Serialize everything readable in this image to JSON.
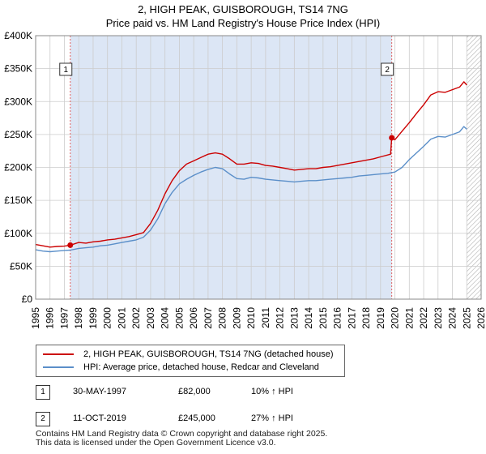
{
  "title_line1": "2, HIGH PEAK, GUISBOROUGH, TS14 7NG",
  "title_line2": "Price paid vs. HM Land Registry's House Price Index (HPI)",
  "colors": {
    "property": "#cc0000",
    "hpi": "#5b8fc9",
    "plot_bg": "#dce6f5",
    "future_hatch": "#b0b0b0"
  },
  "legend": {
    "property_label": "2, HIGH PEAK, GUISBOROUGH, TS14 7NG (detached house)",
    "hpi_label": "HPI: Average price, detached house, Redcar and Cleveland"
  },
  "transactions": [
    {
      "num": "1",
      "date": "30-MAY-1997",
      "price": "£82,000",
      "hpi_change": "10% ↑ HPI"
    },
    {
      "num": "2",
      "date": "11-OCT-2019",
      "price": "£245,000",
      "hpi_change": "27% ↑ HPI"
    }
  ],
  "footer_line1": "Contains HM Land Registry data © Crown copyright and database right 2025.",
  "footer_line2": "This data is licensed under the Open Government Licence v3.0.",
  "chart_data": {
    "type": "line",
    "title": "2, HIGH PEAK, GUISBOROUGH, TS14 7NG",
    "subtitle": "Price paid vs. HM Land Registry's House Price Index (HPI)",
    "xlim": [
      1995,
      2026
    ],
    "ylim": [
      0,
      400000
    ],
    "x_ticks": [
      1995,
      1996,
      1997,
      1998,
      1999,
      2000,
      2001,
      2002,
      2003,
      2004,
      2005,
      2006,
      2007,
      2008,
      2009,
      2010,
      2011,
      2012,
      2013,
      2014,
      2015,
      2016,
      2017,
      2018,
      2019,
      2020,
      2021,
      2022,
      2023,
      2024,
      2025,
      2026
    ],
    "y_ticks": [
      {
        "value": 0,
        "label": "£0"
      },
      {
        "value": 50000,
        "label": "£50K"
      },
      {
        "value": 100000,
        "label": "£100K"
      },
      {
        "value": 150000,
        "label": "£150K"
      },
      {
        "value": 200000,
        "label": "£200K"
      },
      {
        "value": 250000,
        "label": "£250K"
      },
      {
        "value": 300000,
        "label": "£300K"
      },
      {
        "value": 350000,
        "label": "£350K"
      },
      {
        "value": 400000,
        "label": "£400K"
      }
    ],
    "grid": true,
    "legend_position": "below",
    "shaded_period": [
      1997.41,
      2019.78
    ],
    "hatched_from": 2025.0,
    "series": [
      {
        "name": "2, HIGH PEAK, GUISBOROUGH, TS14 7NG (detached house)",
        "color": "#cc0000",
        "points": [
          [
            1995.0,
            83000
          ],
          [
            1995.5,
            81000
          ],
          [
            1996.0,
            79000
          ],
          [
            1996.5,
            80000
          ],
          [
            1997.0,
            80500
          ],
          [
            1997.41,
            82000
          ],
          [
            1998.0,
            86000
          ],
          [
            1998.5,
            85000
          ],
          [
            1999.0,
            87000
          ],
          [
            1999.5,
            88000
          ],
          [
            2000.0,
            90000
          ],
          [
            2000.5,
            91000
          ],
          [
            2001.0,
            93000
          ],
          [
            2001.5,
            95000
          ],
          [
            2002.0,
            98000
          ],
          [
            2002.5,
            101000
          ],
          [
            2003.0,
            115000
          ],
          [
            2003.5,
            135000
          ],
          [
            2004.0,
            160000
          ],
          [
            2004.5,
            180000
          ],
          [
            2005.0,
            195000
          ],
          [
            2005.5,
            205000
          ],
          [
            2006.0,
            210000
          ],
          [
            2006.5,
            215000
          ],
          [
            2007.0,
            220000
          ],
          [
            2007.5,
            222000
          ],
          [
            2008.0,
            220000
          ],
          [
            2008.5,
            213000
          ],
          [
            2009.0,
            205000
          ],
          [
            2009.5,
            205000
          ],
          [
            2010.0,
            207000
          ],
          [
            2010.5,
            206000
          ],
          [
            2011.0,
            203000
          ],
          [
            2011.5,
            202000
          ],
          [
            2012.0,
            200000
          ],
          [
            2012.5,
            198000
          ],
          [
            2013.0,
            196000
          ],
          [
            2013.5,
            197000
          ],
          [
            2014.0,
            198000
          ],
          [
            2014.5,
            198000
          ],
          [
            2015.0,
            200000
          ],
          [
            2015.5,
            201000
          ],
          [
            2016.0,
            203000
          ],
          [
            2016.5,
            205000
          ],
          [
            2017.0,
            207000
          ],
          [
            2017.5,
            209000
          ],
          [
            2018.0,
            211000
          ],
          [
            2018.5,
            213000
          ],
          [
            2019.0,
            216000
          ],
          [
            2019.7,
            220000
          ],
          [
            2019.78,
            245000
          ],
          [
            2020.0,
            242000
          ],
          [
            2020.5,
            255000
          ],
          [
            2021.0,
            268000
          ],
          [
            2021.5,
            282000
          ],
          [
            2022.0,
            295000
          ],
          [
            2022.5,
            310000
          ],
          [
            2023.0,
            315000
          ],
          [
            2023.5,
            314000
          ],
          [
            2024.0,
            318000
          ],
          [
            2024.5,
            322000
          ],
          [
            2024.8,
            330000
          ],
          [
            2025.0,
            325000
          ]
        ]
      },
      {
        "name": "HPI: Average price, detached house, Redcar and Cleveland",
        "color": "#5b8fc9",
        "points": [
          [
            1995.0,
            75000
          ],
          [
            1995.5,
            73000
          ],
          [
            1996.0,
            72000
          ],
          [
            1996.5,
            73000
          ],
          [
            1997.0,
            74000
          ],
          [
            1997.41,
            74500
          ],
          [
            1998.0,
            77000
          ],
          [
            1998.5,
            78000
          ],
          [
            1999.0,
            79000
          ],
          [
            1999.5,
            81000
          ],
          [
            2000.0,
            82000
          ],
          [
            2000.5,
            84000
          ],
          [
            2001.0,
            86000
          ],
          [
            2001.5,
            88000
          ],
          [
            2002.0,
            90000
          ],
          [
            2002.5,
            94000
          ],
          [
            2003.0,
            105000
          ],
          [
            2003.5,
            122000
          ],
          [
            2004.0,
            145000
          ],
          [
            2004.5,
            162000
          ],
          [
            2005.0,
            175000
          ],
          [
            2005.5,
            182000
          ],
          [
            2006.0,
            188000
          ],
          [
            2006.5,
            193000
          ],
          [
            2007.0,
            197000
          ],
          [
            2007.5,
            200000
          ],
          [
            2008.0,
            198000
          ],
          [
            2008.5,
            190000
          ],
          [
            2009.0,
            183000
          ],
          [
            2009.5,
            182000
          ],
          [
            2010.0,
            185000
          ],
          [
            2010.5,
            184000
          ],
          [
            2011.0,
            182000
          ],
          [
            2011.5,
            181000
          ],
          [
            2012.0,
            180000
          ],
          [
            2012.5,
            179000
          ],
          [
            2013.0,
            178000
          ],
          [
            2013.5,
            179000
          ],
          [
            2014.0,
            180000
          ],
          [
            2014.5,
            180000
          ],
          [
            2015.0,
            181000
          ],
          [
            2015.5,
            182000
          ],
          [
            2016.0,
            183000
          ],
          [
            2016.5,
            184000
          ],
          [
            2017.0,
            185000
          ],
          [
            2017.5,
            187000
          ],
          [
            2018.0,
            188000
          ],
          [
            2018.5,
            189000
          ],
          [
            2019.0,
            190000
          ],
          [
            2019.5,
            191000
          ],
          [
            2020.0,
            193000
          ],
          [
            2020.5,
            200000
          ],
          [
            2021.0,
            212000
          ],
          [
            2021.5,
            222000
          ],
          [
            2022.0,
            232000
          ],
          [
            2022.5,
            243000
          ],
          [
            2023.0,
            247000
          ],
          [
            2023.5,
            246000
          ],
          [
            2024.0,
            250000
          ],
          [
            2024.5,
            254000
          ],
          [
            2024.8,
            262000
          ],
          [
            2025.0,
            258000
          ]
        ]
      }
    ],
    "markers": [
      {
        "label": "1",
        "x": 1997.41,
        "y": 82000
      },
      {
        "label": "2",
        "x": 2019.78,
        "y": 245000
      }
    ]
  }
}
